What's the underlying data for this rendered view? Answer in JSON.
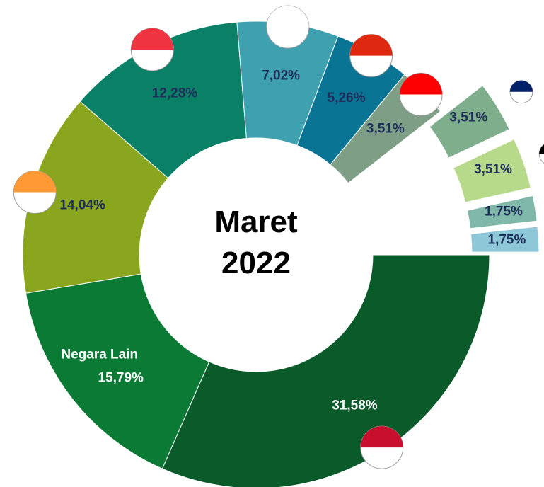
{
  "chart_data": {
    "type": "donut",
    "title": "Maret 2022",
    "categories": [
      null,
      "Negara Lain",
      null,
      null,
      null,
      null,
      null,
      null,
      null,
      null,
      null
    ],
    "values": [
      31.58,
      15.79,
      14.04,
      12.28,
      7.02,
      5.26,
      3.51,
      3.51,
      3.51,
      1.75,
      1.75
    ],
    "value_labels": [
      "31,58%",
      "15,79%",
      "14,04%",
      "12,28%",
      "7,02%",
      "5,26%",
      "3,51%",
      "3,51%",
      "3,51%",
      "1,75%",
      "1,75%"
    ],
    "colors": [
      "#0b5a2a",
      "#0a7a35",
      "#8aa51e",
      "#0a8066",
      "#3fa0b0",
      "#0a7494",
      "#7e9f86",
      "#7fae8c",
      "#b7d98a",
      "#7fb8a8",
      "#8ec8d8"
    ]
  }
}
